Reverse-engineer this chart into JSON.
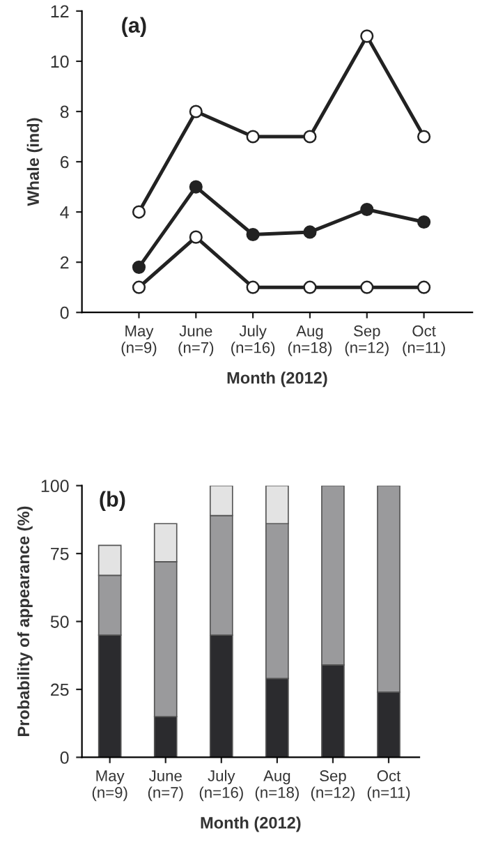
{
  "chart_data": [
    {
      "type": "line",
      "title": "(a)",
      "xlabel": "Month (2012)",
      "ylabel": "Whale (ind)",
      "categories": [
        "May\n(n=9)",
        "June\n(n=7)",
        "July\n(n=16)",
        "Aug\n(n=18)",
        "Sep\n(n=12)",
        "Oct\n(n=11)"
      ],
      "series": [
        {
          "color": "#ffffff",
          "values": [
            4,
            8,
            7,
            7,
            11,
            7
          ]
        },
        {
          "color": "#222222",
          "values": [
            1.8,
            5,
            3.1,
            3.2,
            4.1,
            3.6
          ]
        },
        {
          "color": "#ffffff",
          "values": [
            1,
            3,
            1,
            1,
            1,
            1
          ]
        }
      ],
      "ylim": [
        0,
        12
      ],
      "yticks": [
        0,
        2,
        4,
        6,
        8,
        10,
        12
      ],
      "marker": "circle",
      "line_style": "solid",
      "grid": false
    },
    {
      "type": "bar",
      "stacked": true,
      "title": "(b)",
      "xlabel": "Month (2012)",
      "ylabel": "Probability of appearance (%)",
      "categories": [
        "May\n(n=9)",
        "June\n(n=7)",
        "July\n(n=16)",
        "Aug\n(n=18)",
        "Sep\n(n=12)",
        "Oct\n(n=11)"
      ],
      "series": [
        {
          "color": "#2b2b2e",
          "values": [
            45,
            15,
            45,
            29,
            34,
            24
          ]
        },
        {
          "color": "#9a9a9c",
          "values": [
            22,
            57,
            44,
            57,
            66,
            76
          ]
        },
        {
          "color": "#e3e3e3",
          "values": [
            11,
            14,
            11,
            14,
            0,
            0
          ]
        }
      ],
      "ylim": [
        0,
        100
      ],
      "yticks": [
        0,
        25,
        50,
        75,
        100
      ],
      "grid": false
    }
  ]
}
